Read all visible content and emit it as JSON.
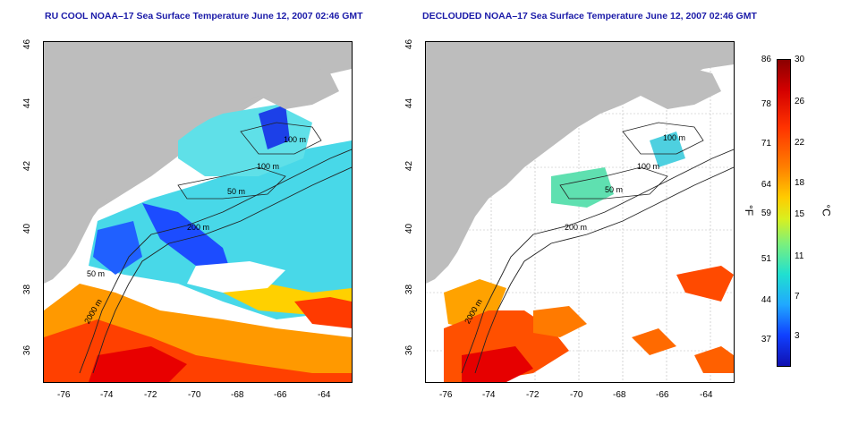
{
  "titles": {
    "left": "RU COOL NOAA–17 Sea Surface Temperature June 12, 2007 02:46 GMT",
    "right": "DECLOUDED NOAA–17 Sea Surface Temperature June 12, 2007 02:46 GMT"
  },
  "axes": {
    "x_ticks": [
      "-76",
      "-74",
      "-72",
      "-70",
      "-68",
      "-66",
      "-64"
    ],
    "y_ticks": [
      "46",
      "44",
      "42",
      "40",
      "38",
      "36"
    ]
  },
  "contour_labels": {
    "left": [
      "100 m",
      "100 m",
      "200 m",
      "50 m",
      "50 m",
      "2000 m"
    ],
    "right": [
      "100 m",
      "100 m",
      "200 m",
      "50 m",
      "2000 m"
    ]
  },
  "colorbar": {
    "fahrenheit_ticks": [
      "86",
      "78",
      "71",
      "64",
      "59",
      "51",
      "44",
      "37"
    ],
    "celsius_ticks": [
      "30",
      "26",
      "22",
      "18",
      "15",
      "11",
      "7",
      "3"
    ],
    "unit_f": "°F",
    "unit_c": "°C"
  },
  "colors": {
    "title": "#1a1aa8",
    "land": "#bdbdbd",
    "cloud": "#ffffff"
  }
}
